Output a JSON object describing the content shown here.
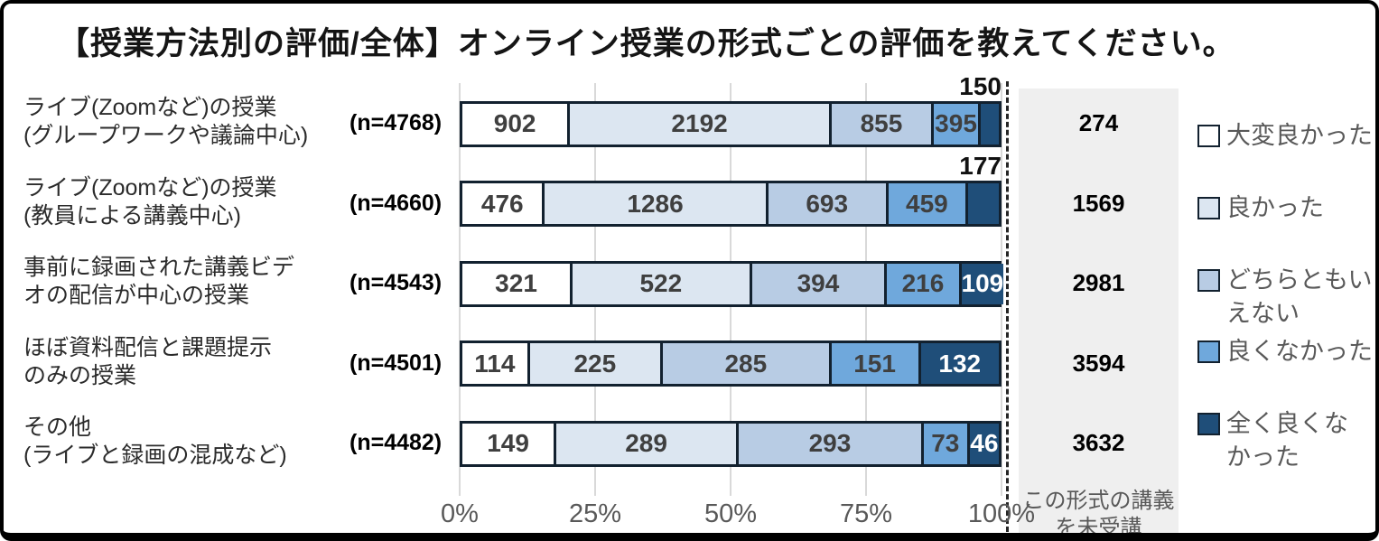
{
  "title": "【授業方法別の評価/全体】オンライン授業の形式ごとの評価を教えてください。",
  "colors": {
    "segment_border": "#12212f",
    "gridline": "#d9d9d9",
    "panel_background": "#efefef",
    "axis_text": "#595959",
    "bar_value_text": "#3f3f3f",
    "bar_value_text_dark_segment": "#ffffff"
  },
  "chart_data": {
    "type": "bar",
    "stacked": true,
    "orientation": "horizontal",
    "title": "【授業方法別の評価/全体】オンライン授業の形式ごとの評価を教えてください。",
    "x_ticks": [
      "0%",
      "25%",
      "50%",
      "75%",
      "100%"
    ],
    "x_range_percent": [
      0,
      100
    ],
    "grid": true,
    "legend_position": "right",
    "series_labels": [
      "大変良かった",
      "良かった",
      "どちらともいえない",
      "良くなかった",
      "全く良くなかった"
    ],
    "series_colors": [
      "#ffffff",
      "#dce6f1",
      "#b8cce4",
      "#6fa8dc",
      "#1f4e79"
    ],
    "rows": [
      {
        "label_lines": [
          "ライブ(Zoomなど)の授業",
          "(グループワークや議論中心)"
        ],
        "n_label": "(n=4768)",
        "values": [
          902,
          2192,
          855,
          395,
          150
        ],
        "last_value_label_outside": true,
        "not_attended": 274
      },
      {
        "label_lines": [
          "ライブ(Zoomなど)の授業",
          "(教員による講義中心)"
        ],
        "n_label": "(n=4660)",
        "values": [
          476,
          1286,
          693,
          459,
          177
        ],
        "last_value_label_outside": true,
        "not_attended": 1569
      },
      {
        "label_lines": [
          "事前に録画された講義ビデ",
          "オの配信が中心の授業"
        ],
        "n_label": "(n=4543)",
        "values": [
          321,
          522,
          394,
          216,
          109
        ],
        "last_value_label_outside": false,
        "not_attended": 2981
      },
      {
        "label_lines": [
          "ほぼ資料配信と課題提示",
          "のみの授業"
        ],
        "n_label": "(n=4501)",
        "values": [
          114,
          225,
          285,
          151,
          132
        ],
        "last_value_label_outside": false,
        "not_attended": 3594
      },
      {
        "label_lines": [
          "その他",
          "(ライブと録画の混成など)"
        ],
        "n_label": "(n=4482)",
        "values": [
          149,
          289,
          293,
          73,
          46
        ],
        "last_value_label_outside": false,
        "not_attended": 3632
      }
    ],
    "not_attended_column": {
      "label_lines": [
        "この形式の講義",
        "を未受講"
      ],
      "values": [
        274,
        1569,
        2981,
        3594,
        3632
      ]
    }
  },
  "legend": {
    "items": [
      {
        "label": "大変良かった",
        "lines": [
          "大変良かった"
        ],
        "color": "#ffffff"
      },
      {
        "label": "良かった",
        "lines": [
          "良かった"
        ],
        "color": "#dce6f1"
      },
      {
        "label": "どちらともいえない",
        "lines": [
          "どちらともい",
          "えない"
        ],
        "color": "#b8cce4"
      },
      {
        "label": "良くなかった",
        "lines": [
          "良くなかった"
        ],
        "color": "#6fa8dc"
      },
      {
        "label": "全く良くなかった",
        "lines": [
          "全く良くな",
          "かった"
        ],
        "color": "#1f4e79"
      }
    ]
  }
}
